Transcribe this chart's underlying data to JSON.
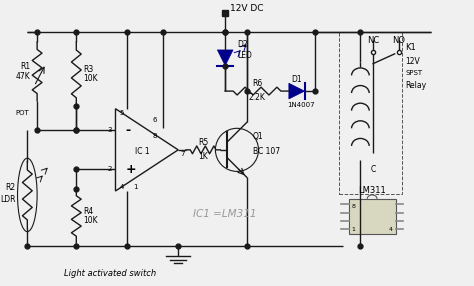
{
  "background_color": "#f0f0f0",
  "line_color": "#1a1a1a",
  "blue_color": "#00008B",
  "text_color": "#000000",
  "gray_color": "#888888",
  "figsize": [
    4.74,
    2.86
  ],
  "dpi": 100,
  "title_bottom": "Light activated switch",
  "label_12vdc": "12V DC",
  "label_ic1": "IC1 =LM311",
  "label_lm311": "LM311"
}
